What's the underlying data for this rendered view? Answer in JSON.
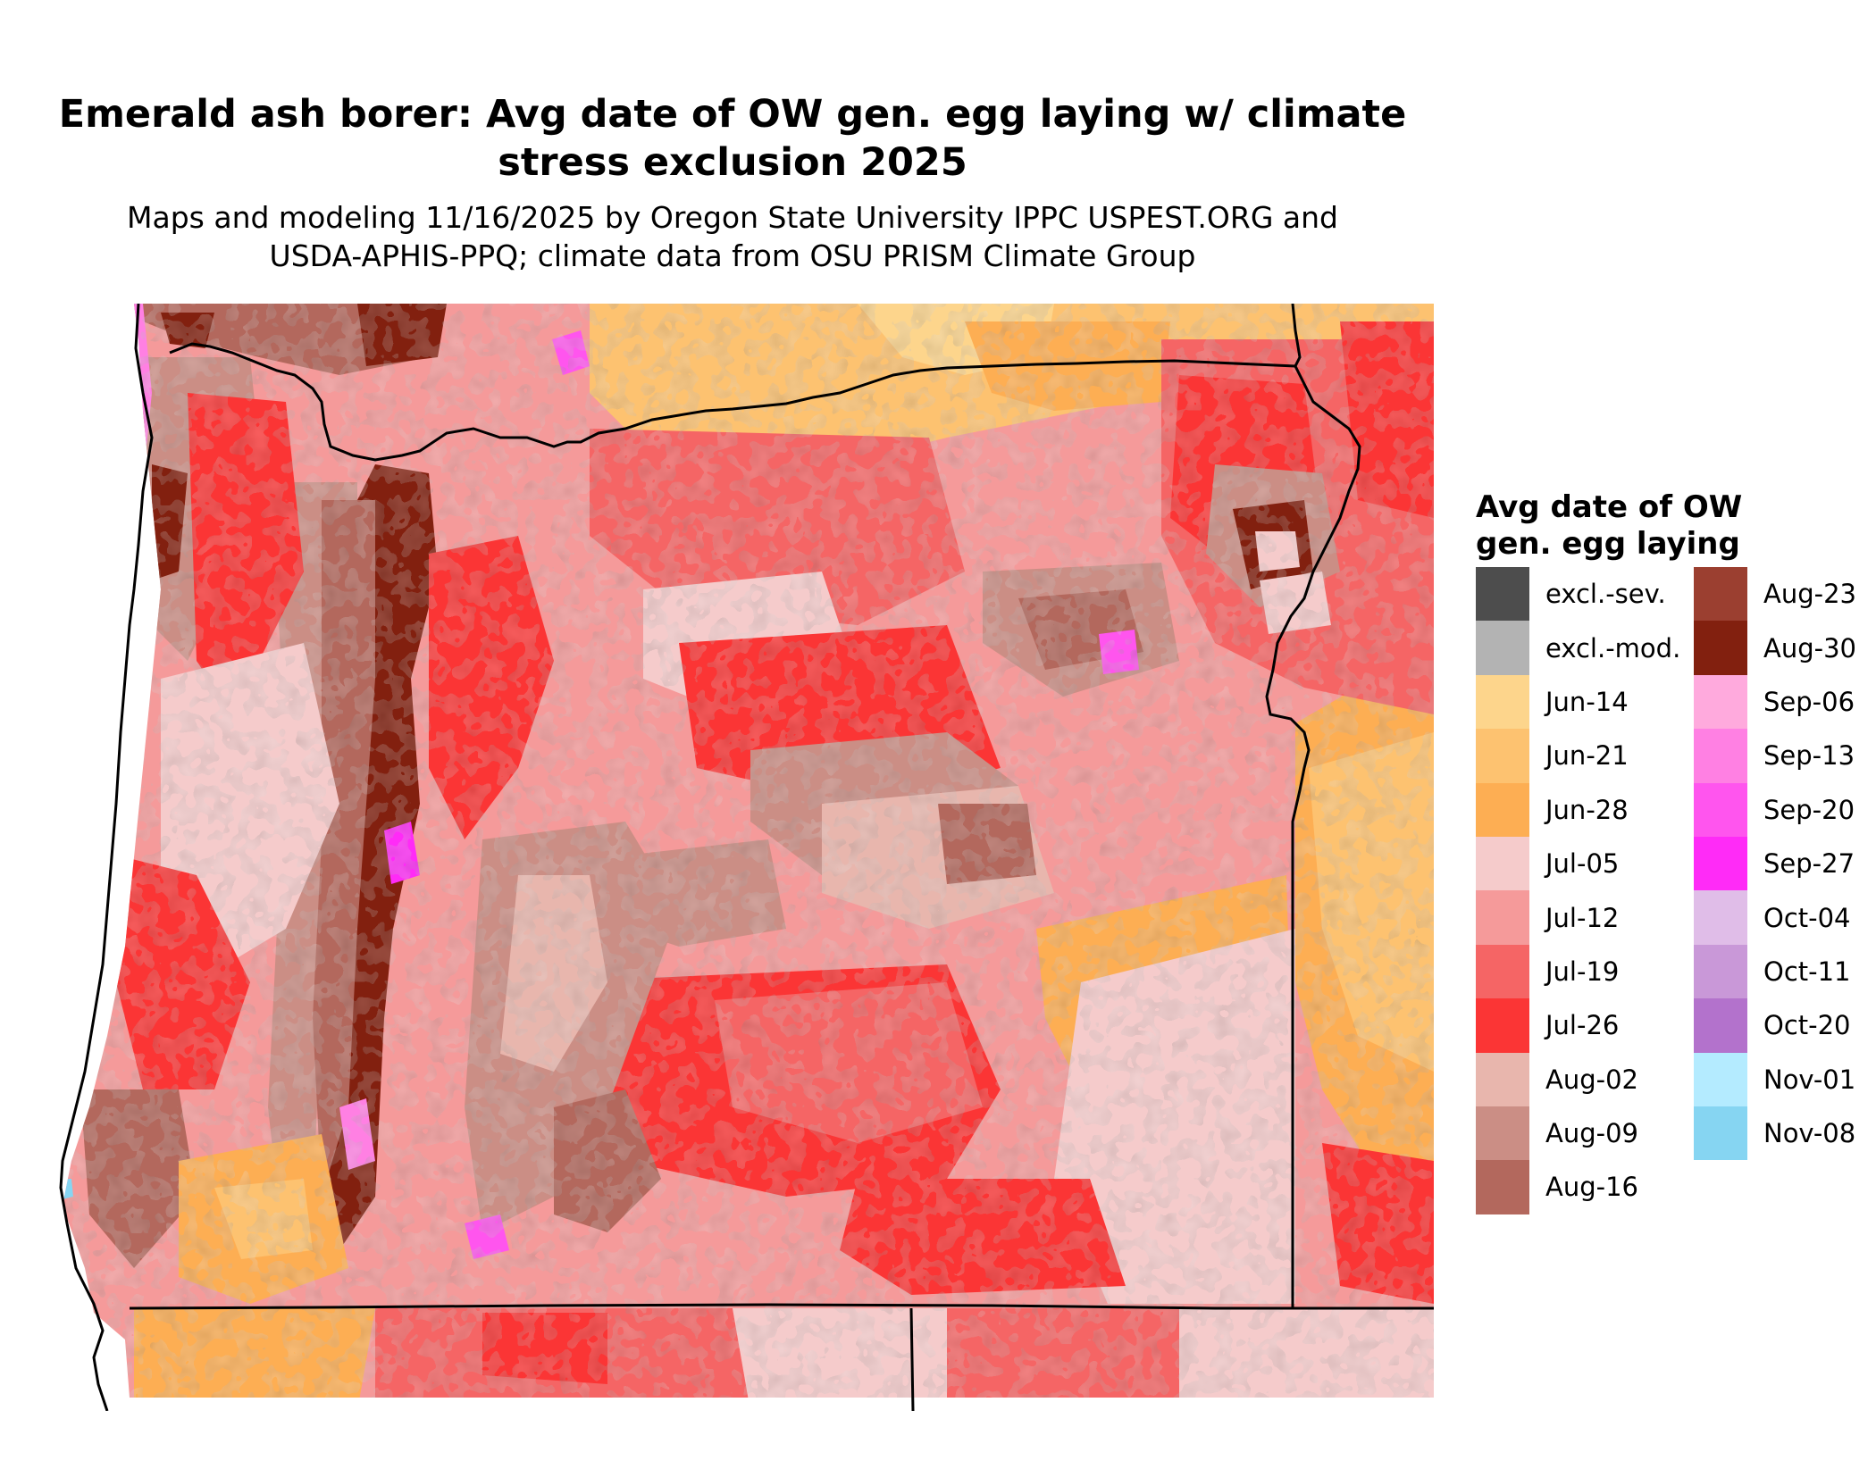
{
  "title_line1": "Emerald ash borer: Avg date of OW gen. egg laying w/ climate",
  "title_line2": "stress exclusion 2025",
  "subtitle_line1": "Maps and modeling 11/16/2025 by Oregon State University IPPC USPEST.ORG and",
  "subtitle_line2": "USDA-APHIS-PPQ; climate data from OSU PRISM Climate Group",
  "legend": {
    "title_line1": "Avg date of OW",
    "title_line2": "gen. egg laying",
    "column1": [
      {
        "label": "excl.-sev.",
        "color": "#4d4d4d"
      },
      {
        "label": "excl.-mod.",
        "color": "#b3b3b3"
      },
      {
        "label": "Jun-14",
        "color": "#fdd58c"
      },
      {
        "label": "Jun-21",
        "color": "#fdc270"
      },
      {
        "label": "Jun-28",
        "color": "#fdae53"
      },
      {
        "label": "Jul-05",
        "color": "#f5cbcb"
      },
      {
        "label": "Jul-12",
        "color": "#f59a9a"
      },
      {
        "label": "Jul-19",
        "color": "#f56565"
      },
      {
        "label": "Jul-26",
        "color": "#fb3535"
      },
      {
        "label": "Aug-02",
        "color": "#e8b6ad"
      },
      {
        "label": "Aug-09",
        "color": "#cb8e85"
      },
      {
        "label": "Aug-16",
        "color": "#b3685d"
      }
    ],
    "column2": [
      {
        "label": "Aug-23",
        "color": "#9b3f30"
      },
      {
        "label": "Aug-30",
        "color": "#82200f"
      },
      {
        "label": "Sep-06",
        "color": "#ffaadd"
      },
      {
        "label": "Sep-13",
        "color": "#ff80e3"
      },
      {
        "label": "Sep-20",
        "color": "#ff55ee"
      },
      {
        "label": "Sep-27",
        "color": "#ff2bf7"
      },
      {
        "label": "Oct-04",
        "color": "#e0bde8"
      },
      {
        "label": "Oct-11",
        "color": "#c998d8"
      },
      {
        "label": "Oct-20",
        "color": "#b372cc"
      },
      {
        "label": "Nov-01",
        "color": "#b4ebff"
      },
      {
        "label": "Nov-08",
        "color": "#86d5f2"
      }
    ]
  }
}
